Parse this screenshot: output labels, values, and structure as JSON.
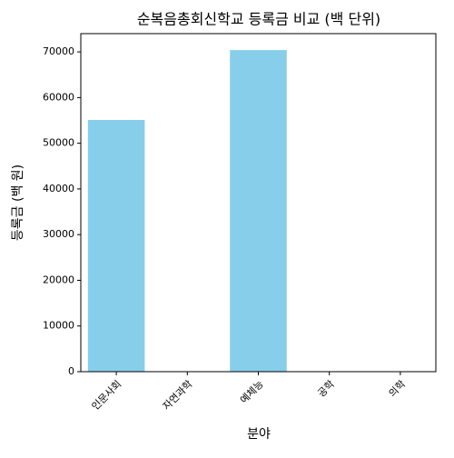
{
  "chart_data": {
    "type": "bar",
    "title": "순복음총회신학교 등록금 비교 (백 단위)",
    "x_label": "분야",
    "y_label": "등록금 (백 원)",
    "categories": [
      "인문사회",
      "자연과학",
      "예체능",
      "공학",
      "의학"
    ],
    "values": [
      55100,
      null,
      70400,
      null,
      null
    ],
    "color": "#87ceeb",
    "ylim": [
      0,
      74000
    ],
    "yticks": [
      0,
      10000,
      20000,
      30000,
      40000,
      50000,
      60000,
      70000
    ],
    "grid": false
  }
}
